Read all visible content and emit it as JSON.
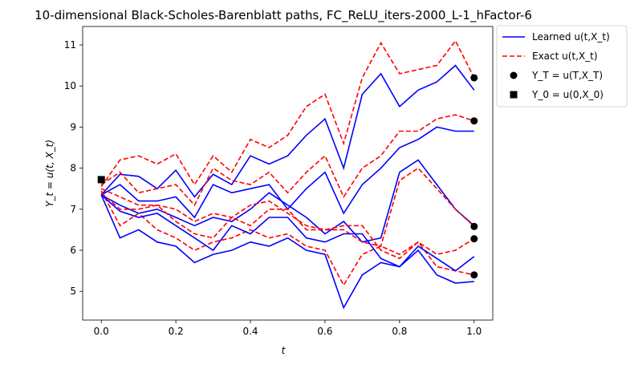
{
  "chart_data": {
    "type": "line",
    "title": "10-dimensional Black-Scholes-Barenblatt paths, FC_ReLU_iters-2000_L-1_hFactor-6",
    "xlabel": "t",
    "ylabel": "Y_t = u(t, X_t)",
    "xlim": [
      -0.05,
      1.05
    ],
    "ylim": [
      4.3,
      11.45
    ],
    "xticks": [
      0.0,
      0.2,
      0.4,
      0.6,
      0.8,
      1.0
    ],
    "xtick_labels": [
      "0.0",
      "0.2",
      "0.4",
      "0.6",
      "0.8",
      "1.0"
    ],
    "yticks": [
      5,
      6,
      7,
      8,
      9,
      10,
      11
    ],
    "ytick_labels": [
      "5",
      "6",
      "7",
      "8",
      "9",
      "10",
      "11"
    ],
    "grid": false,
    "legend_placement": "outside-top-right",
    "legend": [
      {
        "label": "Learned u(t,X_t)",
        "kind": "line",
        "color": "#0000ff",
        "dash": "solid"
      },
      {
        "label": "Exact u(t,X_t)",
        "kind": "line",
        "color": "#ff0000",
        "dash": "dashed"
      },
      {
        "label": "Y_T = u(T,X_T)",
        "kind": "circle",
        "color": "#000000"
      },
      {
        "label": "Y_0 = u(0,X_0)",
        "kind": "square",
        "color": "#000000"
      }
    ],
    "x": [
      0.0,
      0.05,
      0.1,
      0.15,
      0.2,
      0.25,
      0.3,
      0.35,
      0.4,
      0.45,
      0.5,
      0.55,
      0.6,
      0.65,
      0.7,
      0.75,
      0.8,
      0.85,
      0.9,
      0.95,
      1.0
    ],
    "series": [
      {
        "group": "learned",
        "values": [
          7.35,
          7.85,
          7.8,
          7.5,
          7.95,
          7.3,
          7.85,
          7.6,
          8.3,
          8.1,
          8.3,
          8.8,
          9.2,
          8.0,
          9.8,
          10.3,
          9.5,
          9.9,
          10.1,
          10.5,
          9.9
        ]
      },
      {
        "group": "exact",
        "values": [
          7.55,
          8.2,
          8.3,
          8.1,
          8.35,
          7.6,
          8.3,
          7.9,
          8.7,
          8.5,
          8.8,
          9.5,
          9.8,
          8.6,
          10.2,
          11.05,
          10.3,
          10.4,
          10.5,
          11.1,
          10.2
        ]
      },
      {
        "group": "learned",
        "values": [
          7.35,
          7.6,
          7.2,
          7.2,
          7.3,
          6.8,
          7.6,
          7.4,
          7.5,
          7.6,
          7.0,
          7.5,
          7.9,
          6.9,
          7.6,
          8.0,
          8.5,
          8.7,
          9.0,
          8.9,
          8.9
        ]
      },
      {
        "group": "exact",
        "values": [
          7.6,
          7.9,
          7.4,
          7.5,
          7.6,
          7.1,
          8.0,
          7.7,
          7.6,
          7.9,
          7.4,
          7.9,
          8.3,
          7.3,
          8.0,
          8.3,
          8.9,
          8.9,
          9.2,
          9.3,
          9.15
        ]
      },
      {
        "group": "learned",
        "values": [
          7.35,
          7.1,
          6.9,
          7.0,
          6.8,
          6.6,
          6.8,
          6.7,
          7.0,
          7.4,
          7.1,
          6.8,
          6.4,
          6.7,
          6.2,
          6.3,
          7.9,
          8.2,
          7.6,
          7.0,
          6.6
        ]
      },
      {
        "group": "exact",
        "values": [
          7.5,
          7.3,
          7.1,
          7.1,
          7.0,
          6.7,
          6.9,
          6.8,
          7.1,
          7.2,
          6.9,
          6.6,
          6.5,
          6.5,
          6.2,
          6.1,
          7.7,
          8.0,
          7.5,
          7.0,
          6.58
        ]
      },
      {
        "group": "learned",
        "values": [
          7.35,
          6.3,
          6.5,
          6.2,
          6.1,
          5.7,
          5.9,
          6.0,
          6.2,
          6.1,
          6.3,
          6.0,
          5.9,
          4.6,
          5.4,
          5.7,
          5.6,
          6.0,
          5.4,
          5.2,
          5.24
        ]
      },
      {
        "group": "exact",
        "values": [
          7.45,
          6.6,
          6.9,
          6.5,
          6.3,
          6.0,
          6.2,
          6.3,
          6.5,
          6.3,
          6.4,
          6.1,
          6.0,
          5.15,
          5.9,
          6.1,
          5.9,
          6.2,
          5.6,
          5.5,
          5.4
        ]
      },
      {
        "group": "learned",
        "values": [
          7.35,
          6.95,
          6.8,
          6.9,
          6.6,
          6.3,
          6.0,
          6.6,
          6.4,
          6.8,
          6.8,
          6.3,
          6.2,
          6.4,
          6.4,
          5.8,
          5.6,
          6.1,
          5.8,
          5.5,
          5.85
        ]
      },
      {
        "group": "exact",
        "values": [
          7.4,
          7.0,
          7.0,
          7.1,
          6.7,
          6.4,
          6.3,
          6.8,
          6.6,
          7.0,
          7.0,
          6.5,
          6.5,
          6.6,
          6.6,
          6.0,
          5.8,
          6.2,
          5.9,
          6.0,
          6.28
        ]
      }
    ],
    "end_points": [
      10.2,
      9.15,
      6.58,
      6.28,
      5.4
    ],
    "start_point": {
      "x": 0.0,
      "y": 7.72
    },
    "colors": {
      "learned": "#0000ff",
      "exact": "#ff0000",
      "marker": "#000000"
    }
  }
}
